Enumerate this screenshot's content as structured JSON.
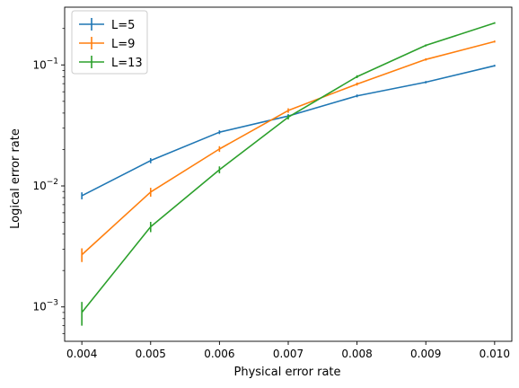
{
  "chart_data": {
    "type": "line",
    "title": "",
    "xlabel": "Physical error rate",
    "ylabel": "Logical error rate",
    "xscale": "linear",
    "yscale": "log",
    "xlim": [
      0.00375,
      0.01025
    ],
    "ylim": [
      0.00052,
      0.3
    ],
    "grid": false,
    "legend_position": "top-left",
    "x_ticks": [
      0.004,
      0.005,
      0.006,
      0.007,
      0.008,
      0.009,
      0.01
    ],
    "x_tick_labels": [
      "0.004",
      "0.005",
      "0.006",
      "0.007",
      "0.008",
      "0.009",
      "0.010"
    ],
    "y_ticks": [
      0.001,
      0.01,
      0.1
    ],
    "y_tick_labels": [
      {
        "base": "10",
        "exp": "−3"
      },
      {
        "base": "10",
        "exp": "−2"
      },
      {
        "base": "10",
        "exp": "−1"
      }
    ],
    "x": [
      0.004,
      0.005,
      0.006,
      0.007,
      0.008,
      0.009,
      0.01
    ],
    "series": [
      {
        "name": "L=5",
        "color": "#1f77b4",
        "values": [
          0.0083,
          0.0162,
          0.0278,
          0.0378,
          0.0555,
          0.072,
          0.0985
        ],
        "errors": [
          0.00055,
          0.0008,
          0.001,
          0.0014,
          0.0015,
          0.0016,
          0.0018
        ]
      },
      {
        "name": "L=9",
        "color": "#ff7f0e",
        "values": [
          0.0027,
          0.0089,
          0.0202,
          0.042,
          0.0695,
          0.111,
          0.156
        ],
        "errors": [
          0.00035,
          0.00075,
          0.0011,
          0.0018,
          0.002,
          0.0025,
          0.003
        ]
      },
      {
        "name": "L=13",
        "color": "#2ca02c",
        "values": [
          0.0009,
          0.0046,
          0.0136,
          0.037,
          0.08,
          0.145,
          0.222
        ],
        "errors": [
          0.0002,
          0.00045,
          0.0009,
          0.0016,
          0.0022,
          0.0028,
          0.0035
        ]
      }
    ]
  }
}
